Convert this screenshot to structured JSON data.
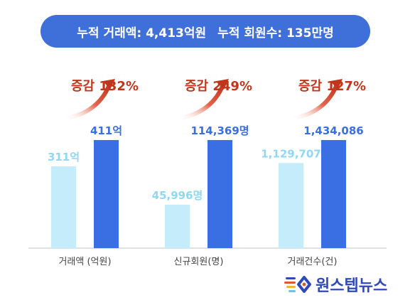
{
  "banner": {
    "left_text": "누적 거래액: 4,413억원",
    "right_text": "누적 회원수: 135만명"
  },
  "colors": {
    "banner": "#3f6fd8",
    "before_bar": "#c5ecfb",
    "after_bar": "#3a6ee3",
    "before_label": "#8fd8f4",
    "after_label": "#3a6ee3",
    "increase": "#c0361c"
  },
  "chart_data": [
    {
      "type": "bar",
      "category": "거래액 (억원)",
      "values": [
        311,
        411
      ],
      "labels": [
        "311억",
        "411억"
      ],
      "increase": "증감 132%"
    },
    {
      "type": "bar",
      "category": "신규회원(명)",
      "values": [
        45996,
        114369
      ],
      "labels": [
        "45,996명",
        "114,369명"
      ],
      "increase": "증감 249%"
    },
    {
      "type": "bar",
      "category": "거래건수(건)",
      "values": [
        1129707,
        1434086
      ],
      "labels": [
        "1,129,707",
        "1,434,086"
      ],
      "increase": "증감 127%"
    }
  ],
  "logo": {
    "text": "원스텝뉴스",
    "icon": "logo-swirl-icon"
  }
}
